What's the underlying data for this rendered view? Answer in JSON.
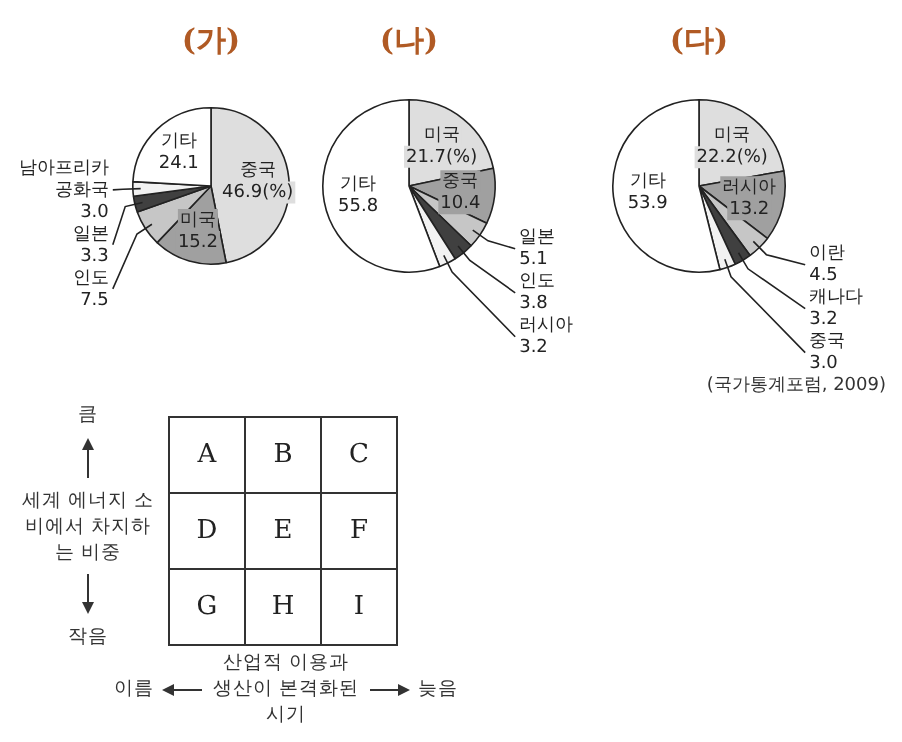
{
  "chart_data": [
    {
      "type": "pie",
      "title": "(가)",
      "categories": [
        "중국",
        "미국",
        "인도",
        "일본",
        "남아프리카 공화국",
        "기타"
      ],
      "values": [
        46.9,
        15.2,
        7.5,
        3.3,
        3.0,
        24.1
      ],
      "value_labels": [
        "46.9(%)",
        "15.2",
        "7.5",
        "3.3",
        "3.0",
        "24.1"
      ],
      "colors": [
        "#dedede",
        "#a0a0a0",
        "#c6c6c6",
        "#404040",
        "#f2f2f2",
        "#ffffff"
      ]
    },
    {
      "type": "pie",
      "title": "(나)",
      "categories": [
        "미국",
        "중국",
        "일본",
        "인도",
        "러시아",
        "기타"
      ],
      "values": [
        21.7,
        10.4,
        5.1,
        3.8,
        3.2,
        55.8
      ],
      "value_labels": [
        "21.7(%)",
        "10.4",
        "5.1",
        "3.8",
        "3.2",
        "55.8"
      ],
      "colors": [
        "#dedede",
        "#a0a0a0",
        "#c6c6c6",
        "#404040",
        "#f2f2f2",
        "#ffffff"
      ]
    },
    {
      "type": "pie",
      "title": "(다)",
      "categories": [
        "미국",
        "러시아",
        "이란",
        "캐나다",
        "중국",
        "기타"
      ],
      "values": [
        22.2,
        13.2,
        4.5,
        3.2,
        3.0,
        53.9
      ],
      "value_labels": [
        "22.2(%)",
        "13.2",
        "4.5",
        "3.2",
        "3.0",
        "53.9"
      ],
      "colors": [
        "#dedede",
        "#a0a0a0",
        "#c6c6c6",
        "#404040",
        "#f2f2f2",
        "#ffffff"
      ],
      "annotations": [
        "(국가통계포럼, 2009)"
      ]
    },
    {
      "type": "other",
      "xlabel": "산업적 이용과 생산이 본격화된 시기",
      "ylabel": "세계 에너지 소비에서 차지하는 비중",
      "cell_labels": [
        [
          "A",
          "B",
          "C"
        ],
        [
          "D",
          "E",
          "F"
        ],
        [
          "G",
          "H",
          "I"
        ]
      ],
      "annotations": [
        "큼",
        "작음",
        "이름",
        "늦음"
      ]
    }
  ]
}
